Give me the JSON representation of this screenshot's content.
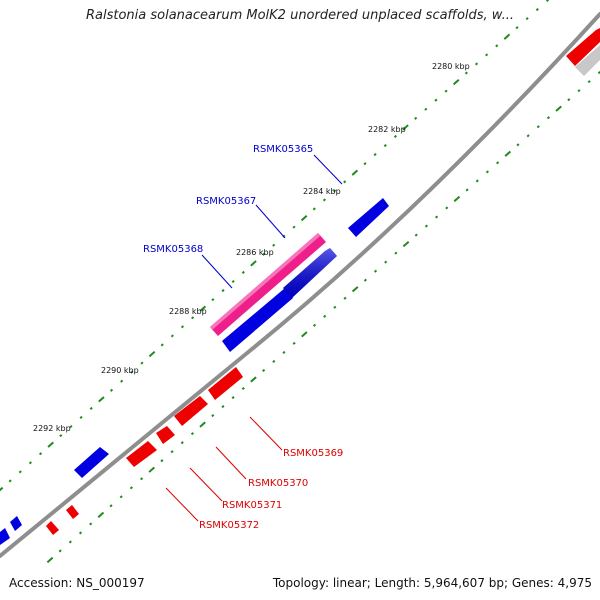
{
  "title": "Ralstonia solanacearum MolK2 unordered unplaced scaffolds, w...",
  "footer": {
    "accession": "Accession: NS_000197",
    "summary": "Topology: linear; Length: 5,964,607 bp; Genes: 4,975"
  },
  "colors": {
    "backbone": "#8e8e8e",
    "tick_mark": "#1f8a1f",
    "forward_gene": "#0000e0",
    "reverse_gene": "#ee0000",
    "selected_gene": "#ee1e8a",
    "faded_gene": "#c8c8c8",
    "forward_label": "#0000cc",
    "reverse_label": "#dd0000"
  },
  "scale_labels": [
    "2280 kbp",
    "2282 kbp",
    "2284 kbp",
    "2286 kbp",
    "2288 kbp",
    "2290 kbp",
    "2292 kbp"
  ],
  "gene_labels": {
    "forward": [
      "RSMK05365",
      "RSMK05367",
      "RSMK05368"
    ],
    "reverse": [
      "RSMK05369",
      "RSMK05370",
      "RSMK05371",
      "RSMK05372"
    ]
  }
}
